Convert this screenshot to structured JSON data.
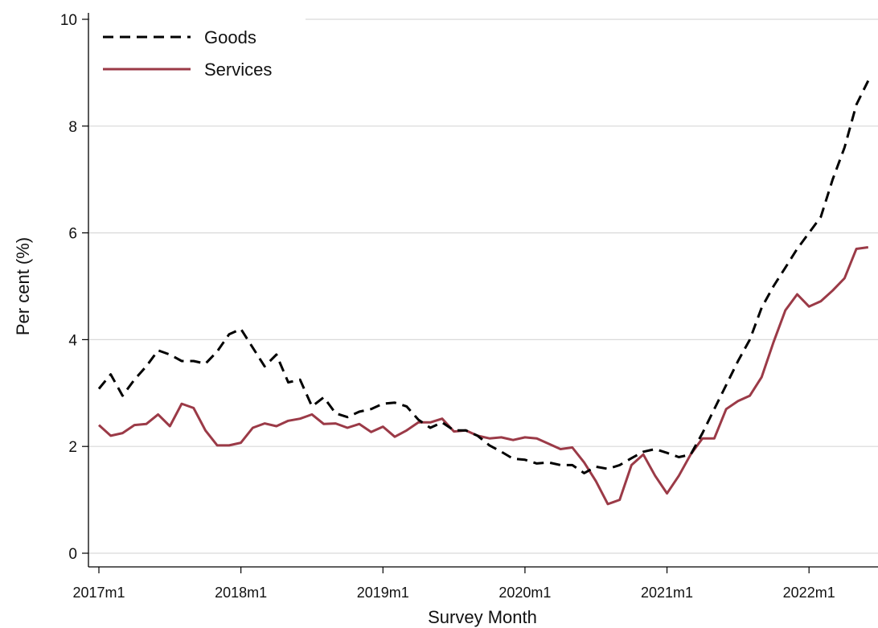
{
  "chart_data": {
    "type": "line",
    "title": "",
    "xlabel": "Survey Month",
    "ylabel": "Per cent (%)",
    "ylim": [
      0,
      10
    ],
    "y_ticks": [
      "0",
      "2",
      "4",
      "6",
      "8",
      "10"
    ],
    "x_ticks": [
      "2017m1",
      "2018m1",
      "2019m1",
      "2020m1",
      "2021m1",
      "2022m1"
    ],
    "grid": "horizontal",
    "legend_position": "top-left",
    "x": [
      "2017m1",
      "2017m2",
      "2017m3",
      "2017m4",
      "2017m5",
      "2017m6",
      "2017m7",
      "2017m8",
      "2017m9",
      "2017m10",
      "2017m11",
      "2017m12",
      "2018m1",
      "2018m2",
      "2018m3",
      "2018m4",
      "2018m5",
      "2018m6",
      "2018m7",
      "2018m8",
      "2018m9",
      "2018m10",
      "2018m11",
      "2018m12",
      "2019m1",
      "2019m2",
      "2019m3",
      "2019m4",
      "2019m5",
      "2019m6",
      "2019m7",
      "2019m8",
      "2019m9",
      "2019m10",
      "2019m11",
      "2019m12",
      "2020m1",
      "2020m2",
      "2020m3",
      "2020m4",
      "2020m5",
      "2020m6",
      "2020m7",
      "2020m8",
      "2020m9",
      "2020m10",
      "2020m11",
      "2020m12",
      "2021m1",
      "2021m2",
      "2021m3",
      "2021m4",
      "2021m5",
      "2021m6",
      "2021m7",
      "2021m8",
      "2021m9",
      "2021m10",
      "2021m11",
      "2021m12",
      "2022m1",
      "2022m2",
      "2022m3",
      "2022m4",
      "2022m5",
      "2022m6"
    ],
    "series": [
      {
        "name": "Goods",
        "color": "#000000",
        "style": "dashed",
        "values": [
          3.08,
          3.35,
          2.95,
          3.25,
          3.5,
          3.8,
          3.72,
          3.6,
          3.6,
          3.55,
          3.78,
          4.1,
          4.2,
          3.85,
          3.5,
          3.72,
          3.2,
          3.25,
          2.75,
          2.92,
          2.62,
          2.55,
          2.65,
          2.7,
          2.8,
          2.82,
          2.75,
          2.5,
          2.35,
          2.45,
          2.3,
          2.3,
          2.2,
          2.02,
          1.9,
          1.77,
          1.75,
          1.68,
          1.7,
          1.65,
          1.65,
          1.5,
          1.62,
          1.58,
          1.65,
          1.78,
          1.9,
          1.95,
          1.88,
          1.8,
          1.85,
          2.25,
          2.7,
          3.15,
          3.6,
          4.0,
          4.6,
          5.0,
          5.35,
          5.7,
          6.0,
          6.3,
          7.0,
          7.6,
          8.4,
          8.85
        ]
      },
      {
        "name": "Services",
        "color": "#9b3a47",
        "style": "solid",
        "values": [
          2.4,
          2.2,
          2.25,
          2.4,
          2.42,
          2.6,
          2.38,
          2.8,
          2.72,
          2.3,
          2.02,
          2.02,
          2.07,
          2.35,
          2.43,
          2.38,
          2.48,
          2.52,
          2.6,
          2.42,
          2.43,
          2.35,
          2.42,
          2.27,
          2.37,
          2.18,
          2.3,
          2.45,
          2.45,
          2.52,
          2.28,
          2.3,
          2.2,
          2.15,
          2.17,
          2.12,
          2.17,
          2.15,
          2.05,
          1.95,
          1.98,
          1.7,
          1.35,
          0.92,
          1.0,
          1.65,
          1.85,
          1.45,
          1.12,
          1.45,
          1.85,
          2.15,
          2.15,
          2.7,
          2.85,
          2.95,
          3.3,
          3.95,
          4.55,
          4.85,
          4.62,
          4.72,
          4.92,
          5.15,
          5.7,
          5.73
        ]
      }
    ]
  }
}
